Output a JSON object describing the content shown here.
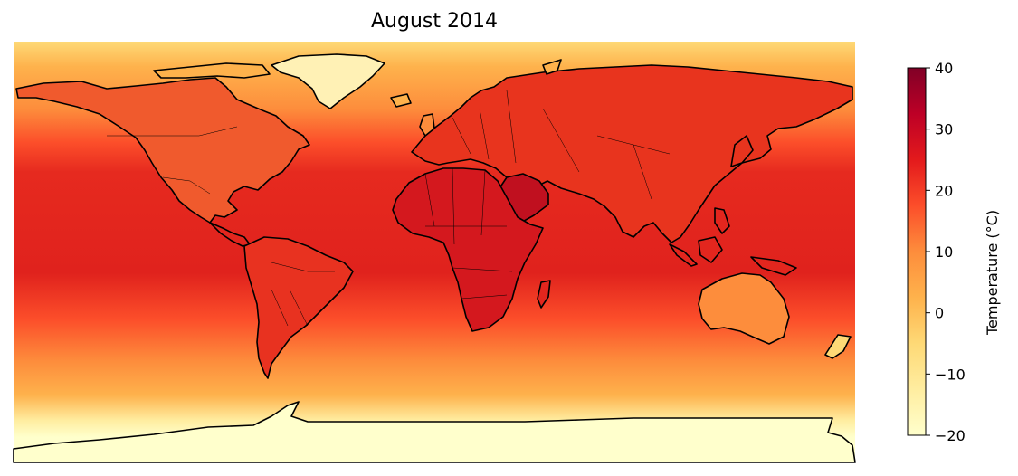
{
  "title": "August 2014",
  "colorbar": {
    "label": "Temperature (°C)",
    "min": -20,
    "max": 40,
    "ticks": [
      40,
      30,
      20,
      10,
      0,
      -10,
      -20
    ],
    "tick_labels": [
      "40",
      "30",
      "20",
      "10",
      "0",
      "−10",
      "−20"
    ],
    "colormap": "YlOrRd",
    "stops": [
      "#ffffcc",
      "#ffeda0",
      "#fed976",
      "#feb24c",
      "#fd8d3c",
      "#fc4e2a",
      "#e31a1c",
      "#bd0026",
      "#800026"
    ]
  },
  "map": {
    "projection": "equirectangular",
    "extent": "global",
    "coastlines": true,
    "country_borders": true,
    "coastline_color": "#000000"
  }
}
